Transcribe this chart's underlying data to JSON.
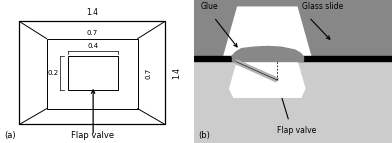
{
  "left_panel": {
    "label_a": "(a)",
    "label_flap": "Flap valve",
    "dim_top": "1.4",
    "dim_right": "1.4",
    "dim_inner_top": "0.7",
    "dim_inner_right": "0.7",
    "dim_small_top": "0.4",
    "dim_small_left": "0.2"
  },
  "right_panel": {
    "label_b": "(b)",
    "label_flap": "Flap valve",
    "label_glue": "Glue",
    "label_glass": "Glass slide",
    "top_gray": "#878787",
    "mid_gray": "#666666",
    "black": "#111111",
    "light_gray": "#cccccc",
    "glue_color": "#888888",
    "flap_color": "#b0b0b0",
    "white": "#ffffff"
  }
}
